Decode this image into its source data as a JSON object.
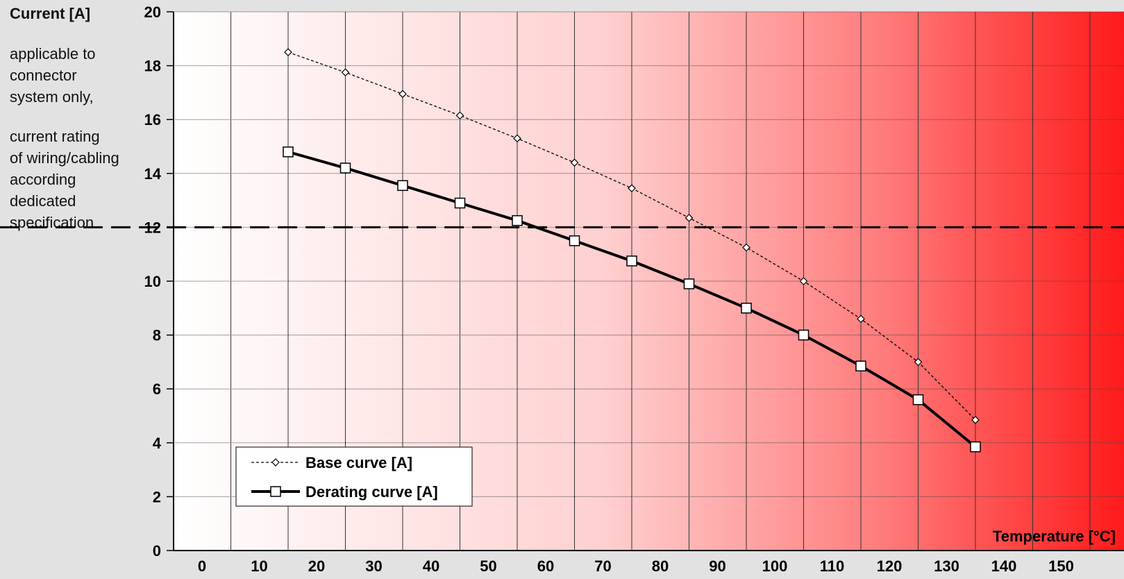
{
  "chart_data": {
    "type": "line",
    "ylabel": "Current [A]",
    "xlabel": "Temperature [°C]",
    "note_lines_1": [
      "applicable to",
      "connector",
      "system only,"
    ],
    "note_lines_2": [
      "current rating",
      "of wiring/cabling",
      "according",
      "dedicated",
      "specification"
    ],
    "x": [
      20,
      30,
      40,
      50,
      60,
      70,
      80,
      90,
      100,
      110,
      120,
      130,
      140
    ],
    "series": [
      {
        "name": "Base curve [A]",
        "values": [
          18.5,
          17.75,
          16.95,
          16.15,
          15.3,
          14.4,
          13.45,
          12.35,
          11.25,
          10.0,
          8.6,
          7.0,
          4.85
        ],
        "style": "dashed-thin",
        "marker": "diamond"
      },
      {
        "name": "Derating curve [A]",
        "values": [
          14.8,
          14.2,
          13.55,
          12.9,
          12.25,
          11.5,
          10.75,
          9.9,
          9.0,
          8.0,
          6.85,
          5.6,
          3.85
        ],
        "style": "solid-thick",
        "marker": "square"
      }
    ],
    "reference_line": 12,
    "x_ticks": [
      0,
      10,
      20,
      30,
      40,
      50,
      60,
      70,
      80,
      90,
      100,
      110,
      120,
      130,
      140,
      150
    ],
    "y_ticks": [
      0,
      2,
      4,
      6,
      8,
      10,
      12,
      14,
      16,
      18,
      20
    ],
    "xlim": [
      0,
      160
    ],
    "ylim": [
      0,
      20
    ],
    "grid": true,
    "legend_position": "bottom-left",
    "background_gradient": [
      "#ffffff",
      "#ff1a1a"
    ]
  }
}
